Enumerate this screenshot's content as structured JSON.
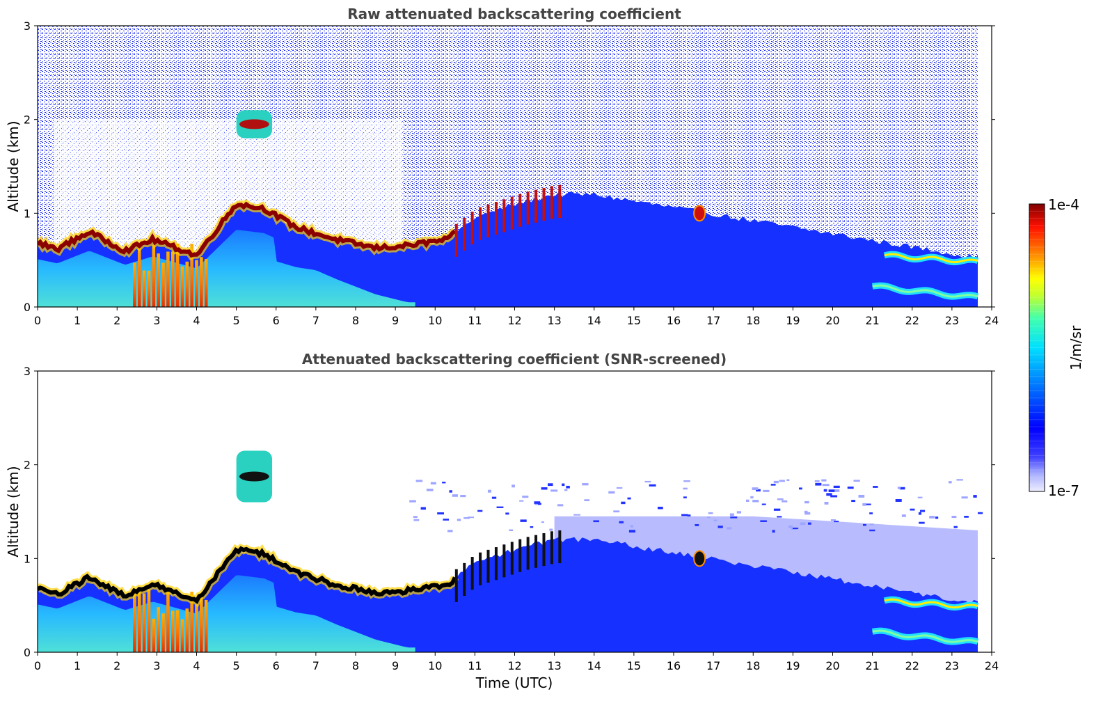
{
  "figure": {
    "xlabel": "Time (UTC)",
    "colorbar": {
      "label": "1/m/sr",
      "max_label": "1e-4",
      "min_label": "1e-7",
      "vmin": 1e-07,
      "vmax": 0.0001,
      "scale": "log",
      "colormap": "jet-like (white → light blue/lavender → blue → cyan → green → yellow → orange → red → dark red)",
      "position": "right"
    }
  },
  "chart_data": [
    {
      "type": "heatmap",
      "title": "Raw attenuated backscattering coefficient",
      "xlabel": "",
      "ylabel": "Altitude (km)",
      "xlim": [
        0,
        24
      ],
      "ylim": [
        0,
        3
      ],
      "x_ticks": [
        "0",
        "1",
        "2",
        "3",
        "4",
        "5",
        "6",
        "7",
        "8",
        "9",
        "10",
        "11",
        "12",
        "13",
        "14",
        "15",
        "16",
        "17",
        "18",
        "19",
        "20",
        "21",
        "22",
        "23",
        "24"
      ],
      "y_ticks": [
        "0",
        "1",
        "2",
        "3"
      ],
      "data_end_hour": 23.65,
      "features": {
        "boundary_layer_top_km": {
          "hours": [
            0,
            0.5,
            1.3,
            2.2,
            2.9,
            4.0,
            5.0,
            5.7,
            6.5,
            7.5,
            8.5,
            9.2,
            10.3,
            11.0,
            12.2,
            13.0,
            14.0
          ],
          "values": [
            0.68,
            0.62,
            0.8,
            0.6,
            0.72,
            0.55,
            1.1,
            1.05,
            0.85,
            0.72,
            0.63,
            0.65,
            0.72,
            0.95,
            1.12,
            1.2,
            1.2
          ]
        },
        "elevated_aerosol_layer": {
          "hours": [
            5.0,
            5.9
          ],
          "altitude_km": [
            1.8,
            2.1
          ]
        },
        "isolated_cloud": {
          "hour": 16.65,
          "altitude_km": 1.0
        },
        "night_layers": [
          {
            "hours": [
              21.3,
              23.65
            ],
            "altitude_km": [
              0.55,
              0.48
            ]
          },
          {
            "hours": [
              21.0,
              23.65
            ],
            "altitude_km": [
              0.22,
              0.1
            ]
          }
        ],
        "surface_high_values": {
          "hours": [
            2.4,
            4.3
          ],
          "altitude_km": [
            0,
            0.7
          ]
        }
      }
    },
    {
      "type": "heatmap",
      "title": "Attenuated backscattering coefficient (SNR-screened)",
      "xlabel": "Time (UTC)",
      "ylabel": "Altitude (km)",
      "xlim": [
        0,
        24
      ],
      "ylim": [
        0,
        3
      ],
      "x_ticks": [
        "0",
        "1",
        "2",
        "3",
        "4",
        "5",
        "6",
        "7",
        "8",
        "9",
        "10",
        "11",
        "12",
        "13",
        "14",
        "15",
        "16",
        "17",
        "18",
        "19",
        "20",
        "21",
        "22",
        "23",
        "24"
      ],
      "y_ticks": [
        "0",
        "1",
        "2",
        "3"
      ],
      "data_end_hour": 23.65,
      "features": {
        "boundary_layer_top_km": {
          "hours": [
            0,
            0.5,
            1.3,
            2.2,
            2.9,
            4.0,
            5.0,
            5.7,
            6.5,
            7.5,
            8.5,
            9.2,
            10.3,
            11.0,
            12.2,
            13.0,
            14.0
          ],
          "values": [
            0.68,
            0.62,
            0.8,
            0.6,
            0.72,
            0.55,
            1.1,
            1.05,
            0.85,
            0.72,
            0.63,
            0.65,
            0.72,
            0.95,
            1.12,
            1.2,
            1.2
          ]
        },
        "elevated_aerosol_layer": {
          "hours": [
            5.0,
            5.9
          ],
          "altitude_km": [
            1.6,
            2.15
          ]
        },
        "isolated_cloud": {
          "hour": 16.65,
          "altitude_km": 1.0
        },
        "night_layers": [
          {
            "hours": [
              21.3,
              23.65
            ],
            "altitude_km": [
              0.55,
              0.48
            ]
          },
          {
            "hours": [
              21.0,
              23.65
            ],
            "altitude_km": [
              0.22,
              0.1
            ]
          }
        ],
        "screened_residual_layer_top_km": {
          "hours": [
            13.0,
            18.0,
            23.65
          ],
          "values": [
            1.45,
            1.45,
            1.3
          ]
        }
      }
    }
  ]
}
